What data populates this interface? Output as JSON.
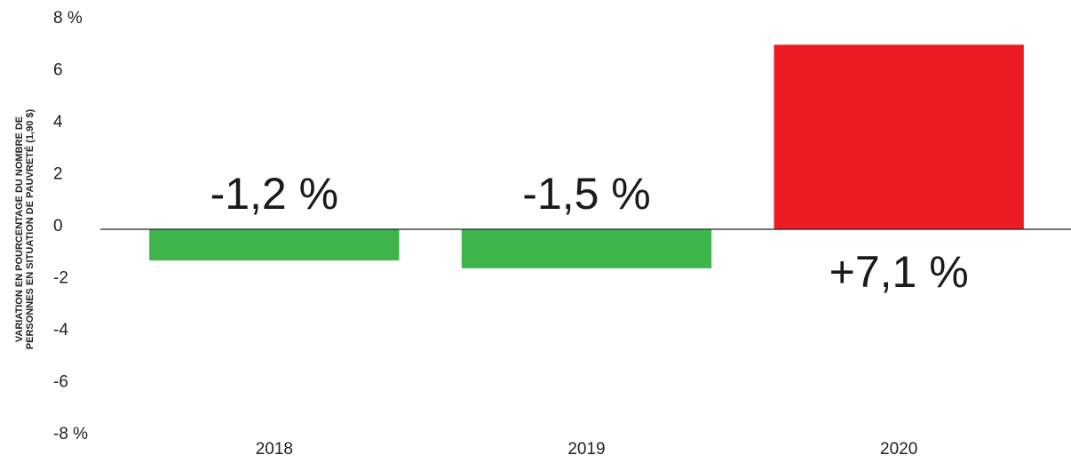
{
  "chart_data": {
    "type": "bar",
    "y_label": [
      "VARIATION EN POURCENTAGE DU NOMBRE DE",
      "PERSONNES EN SITUATION DE PAUVRETÉ (1,90 $)"
    ],
    "categories": [
      "2018",
      "2019",
      "2020"
    ],
    "values": [
      -1.2,
      -1.5,
      7.1
    ],
    "value_labels": [
      "-1,2 %",
      "-1,5 %",
      "+7,1 %"
    ],
    "colors": [
      "#3db54a",
      "#3db54a",
      "#ed1c24"
    ],
    "ylim": [
      -8,
      8
    ],
    "yticks": [
      {
        "value": 8,
        "label": "8 %"
      },
      6,
      4,
      2,
      0,
      -2,
      -4,
      -6,
      {
        "value": -8,
        "label": "-8 %"
      }
    ],
    "grid": false
  }
}
